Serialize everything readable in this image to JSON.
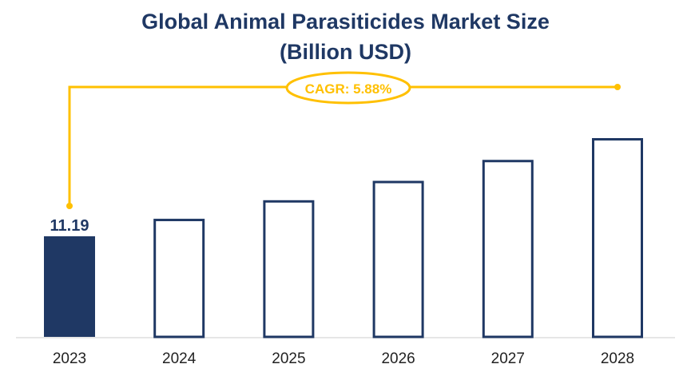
{
  "chart_data": {
    "type": "bar",
    "title": "Global Animal Parasiticides Market Size",
    "subtitle": "(Billion USD)",
    "categories": [
      "2023",
      "2024",
      "2025",
      "2026",
      "2027",
      "2028"
    ],
    "values": [
      11.19,
      11.85,
      12.55,
      13.28,
      14.07,
      14.89
    ],
    "data_labels": [
      "11.19",
      "",
      "",
      "",
      "",
      ""
    ],
    "annotation": "CAGR: 5.88%",
    "ylim": [
      7.4,
      14.89
    ],
    "grid": false,
    "colors": {
      "highlight_fill": "#1f3864",
      "outline": "#1f3864",
      "annotation": "#ffc000",
      "title": "#1f3864"
    }
  }
}
